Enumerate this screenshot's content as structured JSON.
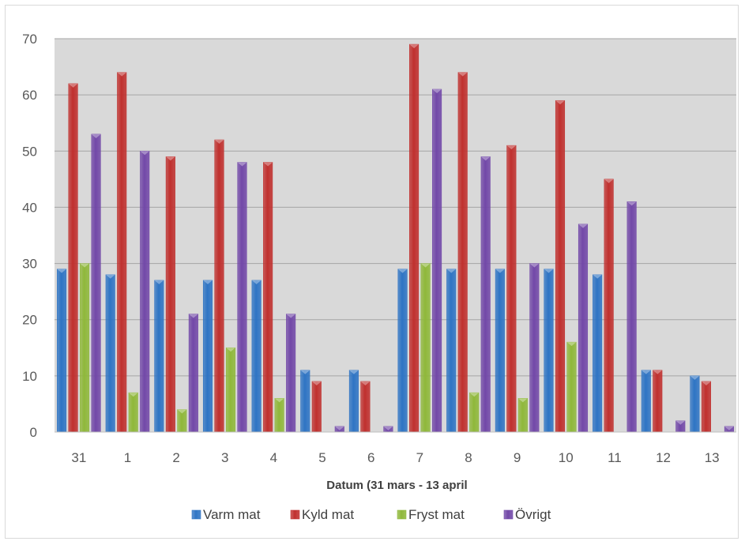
{
  "chart_data": {
    "type": "bar",
    "title": "",
    "xlabel": "Datum (31 mars - 13 april",
    "ylabel": "",
    "ylim": [
      0,
      70
    ],
    "yticks": [
      0,
      10,
      20,
      30,
      40,
      50,
      60,
      70
    ],
    "grid": true,
    "legend_position": "bottom",
    "categories": [
      "31",
      "1",
      "2",
      "3",
      "4",
      "5",
      "6",
      "7",
      "8",
      "9",
      "10",
      "11",
      "12",
      "13"
    ],
    "series": [
      {
        "name": "Varm mat",
        "color": "#2e74c4",
        "values": [
          29,
          28,
          27,
          27,
          27,
          11,
          11,
          29,
          29,
          29,
          29,
          28,
          11,
          10
        ]
      },
      {
        "name": "Kyld mat",
        "color": "#c0302e",
        "values": [
          62,
          64,
          49,
          52,
          48,
          9,
          9,
          69,
          64,
          51,
          59,
          45,
          11,
          9
        ]
      },
      {
        "name": "Fryst mat",
        "color": "#8fb83a",
        "values": [
          30,
          7,
          4,
          15,
          6,
          0,
          0,
          30,
          7,
          6,
          16,
          0,
          0,
          0
        ]
      },
      {
        "name": "Övrigt",
        "color": "#7248a8",
        "values": [
          53,
          50,
          21,
          48,
          21,
          1,
          1,
          61,
          49,
          30,
          37,
          41,
          2,
          1
        ]
      }
    ],
    "plot_background": "#d9d9d9",
    "gridline_color": "#a6a6a6"
  }
}
